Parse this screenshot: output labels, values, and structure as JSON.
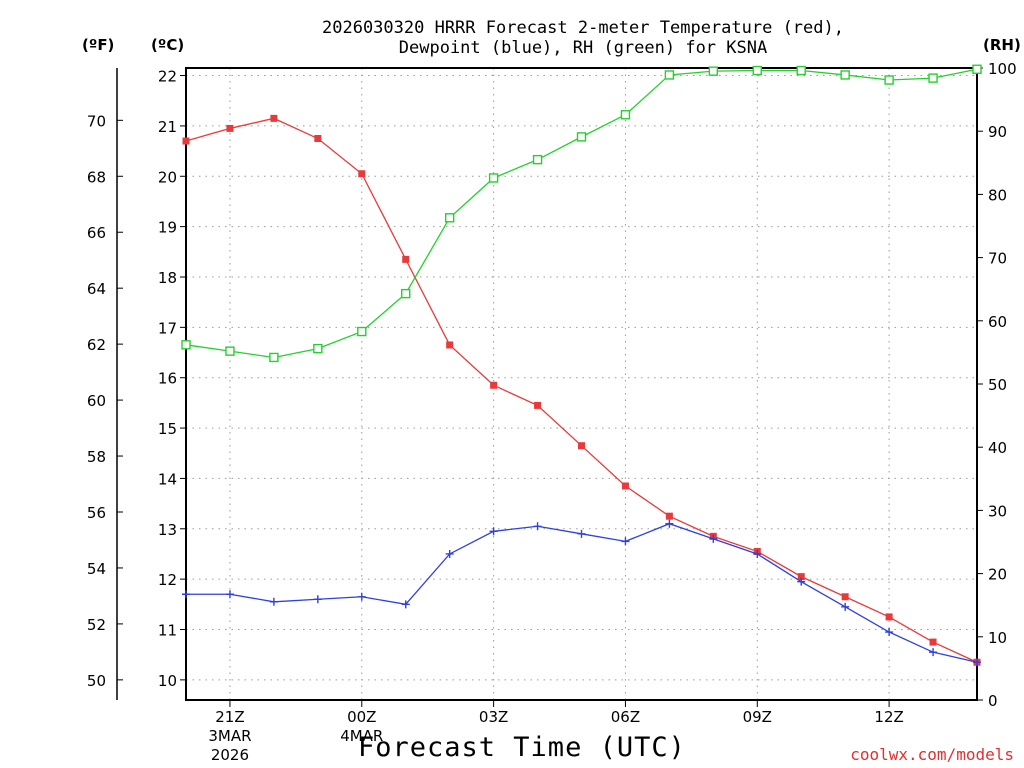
{
  "title_line1": "2026030320 HRRR Forecast 2-meter Temperature (red),",
  "title_line2": "Dewpoint (blue), RH (green) for KSNA",
  "unit_f": "(ºF)",
  "unit_c": "(ºC)",
  "unit_rh": "(RH)",
  "xlabel": "Forecast Time (UTC)",
  "credit": "coolwx.com/models",
  "colors": {
    "temperature": "#e83a3a",
    "dewpoint": "#2f3fe0",
    "rh": "#22d22a",
    "grid": "#9a9a9a"
  },
  "chart_data": {
    "type": "line",
    "title": "2026030320 HRRR Forecast 2-meter Temperature (red), Dewpoint (blue), RH (green) for KSNA",
    "xlabel": "Forecast Time (UTC)",
    "x": [
      0,
      1,
      2,
      3,
      4,
      5,
      6,
      7,
      8,
      9,
      10,
      11,
      12,
      13,
      14,
      15,
      16,
      17,
      18
    ],
    "xlim": [
      0,
      18
    ],
    "x_ticks": [
      {
        "x": 1,
        "label": "21Z",
        "sub1": "3MAR",
        "sub2": "2026"
      },
      {
        "x": 4,
        "label": "00Z",
        "sub1": "4MAR",
        "sub2": ""
      },
      {
        "x": 7,
        "label": "03Z",
        "sub1": "",
        "sub2": ""
      },
      {
        "x": 10,
        "label": "06Z",
        "sub1": "",
        "sub2": ""
      },
      {
        "x": 13,
        "label": "09Z",
        "sub1": "",
        "sub2": ""
      },
      {
        "x": 16,
        "label": "12Z",
        "sub1": "",
        "sub2": ""
      }
    ],
    "ylim_c": [
      9.6,
      22.15
    ],
    "ylim_rh": [
      0,
      100
    ],
    "c_ticks": [
      10,
      11,
      12,
      13,
      14,
      15,
      16,
      17,
      18,
      19,
      20,
      21,
      22
    ],
    "f_ticks": [
      50,
      52,
      54,
      56,
      58,
      60,
      62,
      64,
      66,
      68,
      70
    ],
    "rh_ticks": [
      0,
      10,
      20,
      30,
      40,
      50,
      60,
      70,
      80,
      90,
      100
    ],
    "series": [
      {
        "name": "Temperature",
        "axis": "C",
        "marker": "filled-square",
        "values": [
          20.7,
          20.95,
          21.15,
          20.75,
          20.05,
          18.35,
          16.65,
          15.85,
          15.45,
          14.65,
          13.85,
          13.25,
          12.85,
          12.55,
          12.05,
          11.65,
          11.25,
          10.75,
          10.35
        ]
      },
      {
        "name": "Dewpoint",
        "axis": "C",
        "marker": "plus",
        "values": [
          11.7,
          11.7,
          11.55,
          11.6,
          11.65,
          11.5,
          12.5,
          12.95,
          13.05,
          12.9,
          12.75,
          13.1,
          12.8,
          12.5,
          11.95,
          11.45,
          10.95,
          10.55,
          10.35
        ]
      },
      {
        "name": "RH",
        "axis": "RH",
        "marker": "open-square",
        "values": [
          56.2,
          55.2,
          54.2,
          55.6,
          58.3,
          64.3,
          76.3,
          82.6,
          85.5,
          89.1,
          92.6,
          98.9,
          99.5,
          99.6,
          99.6,
          98.9,
          98.1,
          98.4,
          99.8
        ]
      }
    ]
  }
}
